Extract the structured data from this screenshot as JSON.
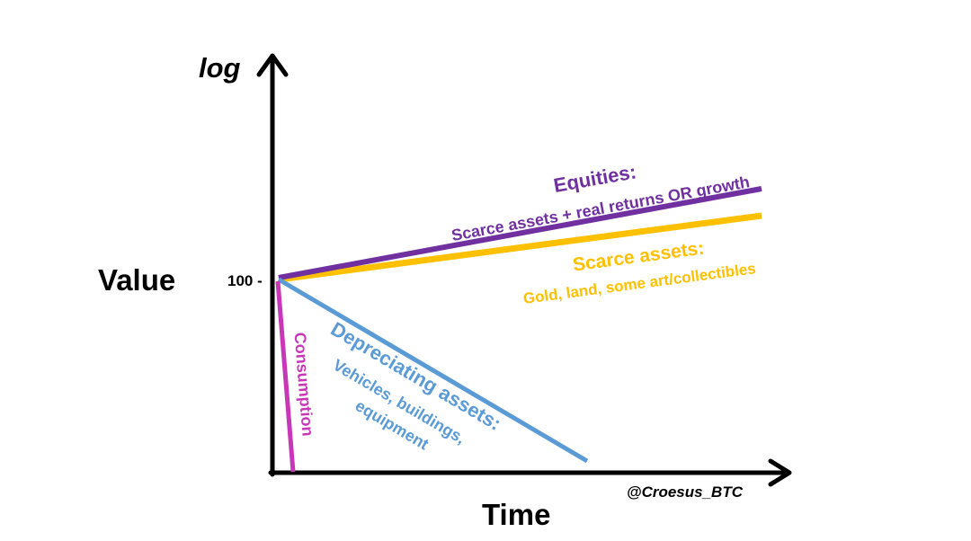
{
  "colors": {
    "axis": "#000000",
    "equities": "#7030A0",
    "scarce": "#FFC000",
    "depreciating": "#5B9BD5",
    "consumption": "#C837B8"
  },
  "axes": {
    "y_label": "log",
    "y_title": "Value",
    "x_title": "Time",
    "tick_label": "100 -",
    "credit": "@Croesus_BTC"
  },
  "series": {
    "equities": {
      "title": "Equities:",
      "subtitle": "Scarce assets + real returns OR growth"
    },
    "scarce": {
      "title": "Scarce assets:",
      "subtitle": "Gold, land, some art/collectibles"
    },
    "depreciating": {
      "title": "Depreciating assets:",
      "line2": "Vehicles, buildings,",
      "line3": "equipment"
    },
    "consumption": {
      "title": "Consumption"
    }
  }
}
